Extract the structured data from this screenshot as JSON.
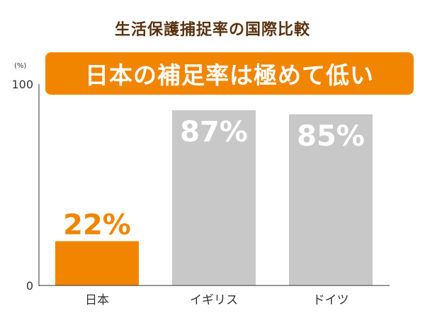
{
  "title": "生活保護捕捉率の国際比較",
  "banner": "日本の補足率は極めて低い",
  "unit": "(%)",
  "chart_data": {
    "type": "bar",
    "categories": [
      "日本",
      "イギリス",
      "ドイツ"
    ],
    "values": [
      22,
      87,
      85
    ],
    "value_labels": [
      "22%",
      "87%",
      "85%"
    ],
    "ylim": [
      0,
      100
    ],
    "yticks": [
      "0",
      "100"
    ],
    "colors": [
      "#f28500",
      "#c8c8c8",
      "#c8c8c8"
    ],
    "label_colors": [
      "#f28500",
      "#ffffff",
      "#ffffff"
    ]
  }
}
